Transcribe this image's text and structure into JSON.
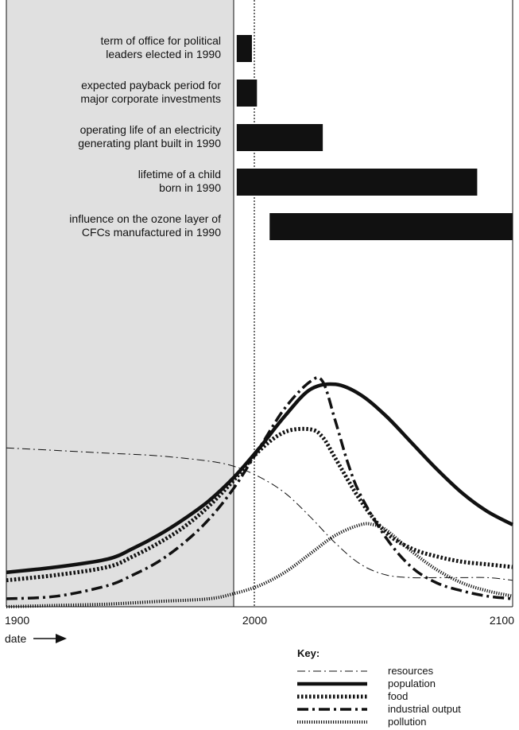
{
  "chart_data": {
    "type": "line",
    "x_axis": {
      "min": 1900,
      "max": 2100,
      "ticks": [
        "1900",
        "2000",
        "2100"
      ],
      "label": "date"
    },
    "reference_lines": {
      "shaded_until": 1991,
      "dotted_at": 2001
    },
    "horizon_bars": [
      {
        "label_lines": [
          "term of office for political",
          "leaders elected in 1990"
        ],
        "start": 1991,
        "end": 1997
      },
      {
        "label_lines": [
          "expected payback period for",
          "major corporate investments"
        ],
        "start": 1991,
        "end": 1999
      },
      {
        "label_lines": [
          "operating life of an electricity",
          "generating plant built in 1990"
        ],
        "start": 1991,
        "end": 2025
      },
      {
        "label_lines": [
          "lifetime of a child",
          "born in 1990"
        ],
        "start": 1991,
        "end": 2086
      },
      {
        "label_lines": [
          "influence on the ozone layer of",
          "CFCs manufactured in 1990"
        ],
        "start": 2004,
        "end": 2100
      }
    ],
    "series": [
      {
        "name": "resources",
        "style": "thin-dash-dot",
        "x": [
          1900,
          1920,
          1940,
          1960,
          1980,
          1990,
          2000,
          2010,
          2020,
          2030,
          2040,
          2050,
          2060,
          2070,
          2080,
          2090,
          2100
        ],
        "y": [
          0.6,
          0.59,
          0.58,
          0.57,
          0.55,
          0.53,
          0.49,
          0.43,
          0.34,
          0.24,
          0.16,
          0.12,
          0.11,
          0.11,
          0.11,
          0.11,
          0.1
        ]
      },
      {
        "name": "population",
        "style": "thick-solid",
        "x": [
          1900,
          1920,
          1940,
          1950,
          1960,
          1970,
          1980,
          1990,
          2000,
          2010,
          2020,
          2030,
          2040,
          2050,
          2060,
          2070,
          2080,
          2090,
          2100
        ],
        "y": [
          0.13,
          0.15,
          0.18,
          0.22,
          0.27,
          0.33,
          0.4,
          0.49,
          0.6,
          0.72,
          0.82,
          0.84,
          0.8,
          0.72,
          0.62,
          0.52,
          0.43,
          0.36,
          0.31
        ]
      },
      {
        "name": "food",
        "style": "thick-dotted",
        "x": [
          1900,
          1920,
          1940,
          1950,
          1960,
          1970,
          1980,
          1990,
          2000,
          2010,
          2020,
          2025,
          2030,
          2040,
          2050,
          2060,
          2070,
          2080,
          2090,
          2100
        ],
        "y": [
          0.1,
          0.12,
          0.15,
          0.19,
          0.24,
          0.3,
          0.38,
          0.48,
          0.59,
          0.66,
          0.67,
          0.64,
          0.56,
          0.4,
          0.28,
          0.22,
          0.19,
          0.17,
          0.16,
          0.15
        ]
      },
      {
        "name": "industrial output",
        "style": "thick-dash-dot",
        "x": [
          1900,
          1920,
          1940,
          1950,
          1960,
          1970,
          1980,
          1990,
          2000,
          2010,
          2020,
          2025,
          2030,
          2035,
          2040,
          2050,
          2060,
          2070,
          2080,
          2090,
          2100
        ],
        "y": [
          0.03,
          0.04,
          0.08,
          0.12,
          0.17,
          0.24,
          0.33,
          0.45,
          0.6,
          0.75,
          0.85,
          0.85,
          0.7,
          0.54,
          0.42,
          0.26,
          0.15,
          0.09,
          0.06,
          0.04,
          0.03
        ]
      },
      {
        "name": "pollution",
        "style": "thick-fine-dotted",
        "x": [
          1900,
          1920,
          1940,
          1960,
          1980,
          1990,
          2000,
          2010,
          2020,
          2030,
          2040,
          2045,
          2050,
          2060,
          2070,
          2080,
          2090,
          2100
        ],
        "y": [
          0.0,
          0.005,
          0.01,
          0.02,
          0.03,
          0.05,
          0.08,
          0.13,
          0.2,
          0.27,
          0.31,
          0.31,
          0.29,
          0.21,
          0.14,
          0.09,
          0.06,
          0.04
        ]
      }
    ],
    "legend": {
      "title": "Key:",
      "position": "bottom-right"
    }
  }
}
